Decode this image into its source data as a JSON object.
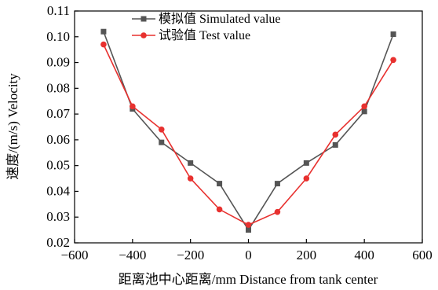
{
  "chart_data": {
    "type": "line",
    "title": "",
    "xlabel": "距离池中心距离/mm Distance from tank center",
    "ylabel": "速度/(m/s) Velocity",
    "xlim": [
      -600,
      600
    ],
    "ylim": [
      0.02,
      0.11
    ],
    "xticks": [
      -600,
      -400,
      -200,
      0,
      200,
      400,
      600
    ],
    "xtick_labels": [
      "−600",
      "−400",
      "−200",
      "0",
      "200",
      "400",
      "600"
    ],
    "yticks": [
      0.02,
      0.03,
      0.04,
      0.05,
      0.06,
      0.07,
      0.08,
      0.09,
      0.1,
      0.11
    ],
    "ytick_labels": [
      "0.02",
      "0.03",
      "0.04",
      "0.05",
      "0.06",
      "0.07",
      "0.08",
      "0.09",
      "0.10",
      "0.11"
    ],
    "grid": false,
    "legend_position": "top-center",
    "series": [
      {
        "name": "模拟值 Simulated value",
        "color": "#555555",
        "marker": "square",
        "x": [
          -500,
          -400,
          -300,
          -200,
          -100,
          0,
          100,
          200,
          300,
          400,
          500
        ],
        "y": [
          0.102,
          0.072,
          0.059,
          0.051,
          0.043,
          0.025,
          0.043,
          0.051,
          0.058,
          0.071,
          0.101
        ]
      },
      {
        "name": "试验值 Test value",
        "color": "#e8312f",
        "marker": "circle",
        "x": [
          -500,
          -400,
          -300,
          -200,
          -100,
          0,
          100,
          200,
          300,
          400,
          500
        ],
        "y": [
          0.097,
          0.073,
          0.064,
          0.045,
          0.033,
          0.027,
          0.032,
          0.045,
          0.062,
          0.073,
          0.091
        ]
      }
    ]
  }
}
